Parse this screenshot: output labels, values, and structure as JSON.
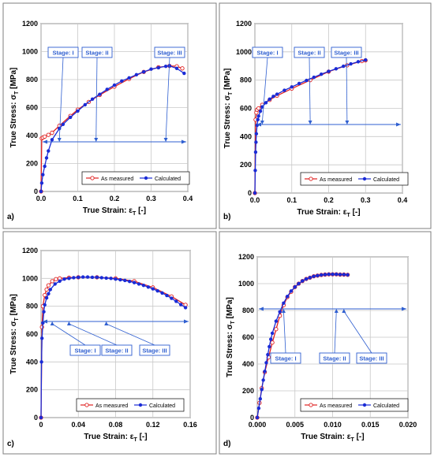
{
  "figure": {
    "colors": {
      "measured": "#e02020",
      "calculated": "#1a2bd6",
      "annotation": "#2f5fd0",
      "grid": "#c8c8c8",
      "axis": "#000000",
      "panel_border": "#7f7f7f"
    }
  },
  "chart_data": [
    {
      "type": "line",
      "panel_label": "a)",
      "xlabel_main": "True Strain: ε",
      "xlabel_sub": "T",
      "xlabel_unit": " [-]",
      "ylabel_main": "True Stress: σ",
      "ylabel_sub": "T",
      "ylabel_unit": " [MPa]",
      "xlim": [
        0,
        0.4
      ],
      "ylim": [
        0,
        1200
      ],
      "xticks": [
        0,
        0.1,
        0.2,
        0.3,
        0.4
      ],
      "xtick_labels": [
        "0.0",
        "0.1",
        "0.2",
        "0.3",
        "0.4"
      ],
      "yticks": [
        0,
        200,
        400,
        600,
        800,
        1000,
        1200
      ],
      "ytick_labels": [
        "0",
        "200",
        "400",
        "600",
        "800",
        "1000",
        "1200"
      ],
      "grid": true,
      "legend": {
        "position": "bottom-center",
        "items": [
          "As measured",
          "Calculated"
        ]
      },
      "series": [
        {
          "name": "As measured",
          "color_key": "measured",
          "x": [
            0,
            0.002,
            0.005,
            0.01,
            0.02,
            0.03,
            0.05,
            0.08,
            0.1,
            0.13,
            0.16,
            0.2,
            0.24,
            0.28,
            0.32,
            0.35,
            0.37,
            0.385
          ],
          "y": [
            0,
            380,
            385,
            392,
            405,
            420,
            470,
            540,
            585,
            640,
            690,
            750,
            805,
            855,
            888,
            898,
            895,
            880
          ]
        },
        {
          "name": "Calculated",
          "color_key": "calculated",
          "x": [
            0,
            0.002,
            0.005,
            0.01,
            0.015,
            0.02,
            0.03,
            0.05,
            0.06,
            0.08,
            0.1,
            0.12,
            0.14,
            0.16,
            0.18,
            0.2,
            0.22,
            0.24,
            0.26,
            0.28,
            0.3,
            0.32,
            0.34,
            0.35,
            0.37,
            0.39
          ],
          "y": [
            0,
            60,
            120,
            180,
            240,
            290,
            370,
            450,
            480,
            530,
            575,
            620,
            660,
            695,
            730,
            760,
            790,
            812,
            835,
            855,
            875,
            885,
            895,
            898,
            880,
            845
          ]
        }
      ],
      "stages": [
        {
          "label": "Stage: I",
          "x": 0.05
        },
        {
          "label": "Stage: II",
          "x": 0.15
        },
        {
          "label": "Stage: III",
          "x": 0.34
        }
      ]
    },
    {
      "type": "line",
      "panel_label": "b)",
      "xlabel_main": "True Strain: ε",
      "xlabel_sub": "T",
      "xlabel_unit": " [-]",
      "ylabel_main": "True Stress: σ",
      "ylabel_sub": "T",
      "ylabel_unit": " [MPa]",
      "xlim": [
        0,
        0.4
      ],
      "ylim": [
        0,
        1200
      ],
      "xticks": [
        0,
        0.1,
        0.2,
        0.3,
        0.4
      ],
      "xtick_labels": [
        "0.0",
        "0.1",
        "0.2",
        "0.3",
        "0.4"
      ],
      "yticks": [
        0,
        200,
        400,
        600,
        800,
        1000,
        1200
      ],
      "ytick_labels": [
        "0",
        "200",
        "400",
        "600",
        "800",
        "1000",
        "1200"
      ],
      "grid": true,
      "legend": {
        "position": "bottom-center",
        "items": [
          "As measured",
          "Calculated"
        ]
      },
      "series": [
        {
          "name": "As measured",
          "color_key": "measured",
          "x": [
            0,
            0.002,
            0.004,
            0.006,
            0.01,
            0.02,
            0.04,
            0.06,
            0.1,
            0.15,
            0.2,
            0.25,
            0.29,
            0.3
          ],
          "y": [
            0,
            520,
            570,
            590,
            600,
            625,
            660,
            690,
            740,
            800,
            860,
            905,
            935,
            940
          ]
        },
        {
          "name": "Calculated",
          "color_key": "calculated",
          "x": [
            0,
            0.001,
            0.002,
            0.003,
            0.004,
            0.006,
            0.008,
            0.01,
            0.015,
            0.02,
            0.03,
            0.04,
            0.05,
            0.06,
            0.08,
            0.1,
            0.12,
            0.14,
            0.16,
            0.18,
            0.2,
            0.22,
            0.24,
            0.26,
            0.28,
            0.3
          ],
          "y": [
            0,
            160,
            290,
            360,
            420,
            480,
            520,
            545,
            580,
            610,
            640,
            665,
            685,
            700,
            728,
            752,
            776,
            798,
            820,
            842,
            862,
            880,
            898,
            915,
            930,
            943
          ]
        }
      ],
      "stages": [
        {
          "label": "Stage: I",
          "x": 0.02
        },
        {
          "label": "Stage: II",
          "x": 0.15
        },
        {
          "label": "Stage: III",
          "x": 0.25
        }
      ]
    },
    {
      "type": "line",
      "panel_label": "c)",
      "xlabel_main": "True Strain: ε",
      "xlabel_sub": "T",
      "xlabel_unit": " [-]",
      "ylabel_main": "True Stress: σ",
      "ylabel_sub": "T",
      "ylabel_unit": " [MPa]",
      "xlim": [
        0,
        0.16
      ],
      "ylim": [
        0,
        1200
      ],
      "xticks": [
        0,
        0.04,
        0.08,
        0.12,
        0.16
      ],
      "xtick_labels": [
        "0",
        "0.04",
        "0.08",
        "0.12",
        "0.16"
      ],
      "yticks": [
        0,
        200,
        400,
        600,
        800,
        1000,
        1200
      ],
      "ytick_labels": [
        "0",
        "200",
        "400",
        "600",
        "800",
        "1000",
        "1200"
      ],
      "grid": true,
      "legend": {
        "position": "bottom-center",
        "items": [
          "As measured",
          "Calculated"
        ]
      },
      "series": [
        {
          "name": "As measured",
          "color_key": "measured",
          "x": [
            0,
            0.001,
            0.002,
            0.004,
            0.006,
            0.008,
            0.012,
            0.016,
            0.02,
            0.03,
            0.04,
            0.06,
            0.08,
            0.1,
            0.12,
            0.14,
            0.155
          ],
          "y": [
            0,
            650,
            800,
            880,
            920,
            950,
            980,
            995,
            1000,
            1005,
            1008,
            1008,
            1000,
            980,
            935,
            870,
            810
          ]
        },
        {
          "name": "Calculated",
          "color_key": "calculated",
          "x": [
            0,
            0.0005,
            0.001,
            0.002,
            0.003,
            0.004,
            0.006,
            0.008,
            0.01,
            0.015,
            0.02,
            0.025,
            0.03,
            0.035,
            0.04,
            0.045,
            0.05,
            0.055,
            0.06,
            0.065,
            0.07,
            0.075,
            0.08,
            0.085,
            0.09,
            0.095,
            0.1,
            0.105,
            0.11,
            0.115,
            0.12,
            0.125,
            0.13,
            0.135,
            0.14,
            0.145,
            0.15,
            0.155
          ],
          "y": [
            0,
            400,
            570,
            680,
            760,
            810,
            860,
            890,
            920,
            960,
            980,
            995,
            1000,
            1005,
            1008,
            1010,
            1010,
            1008,
            1008,
            1005,
            1002,
            1000,
            995,
            990,
            985,
            978,
            970,
            960,
            950,
            938,
            925,
            910,
            895,
            877,
            857,
            835,
            812,
            790
          ]
        }
      ],
      "stages": [
        {
          "label": "Stage: I",
          "x": 0.012
        },
        {
          "label": "Stage: II",
          "x": 0.03
        },
        {
          "label": "Stage: III",
          "x": 0.07
        }
      ]
    },
    {
      "type": "line",
      "panel_label": "d)",
      "xlabel_main": "True Strain: ε",
      "xlabel_sub": "T",
      "xlabel_unit": " [-]",
      "ylabel_main": "True Stress: σ",
      "ylabel_sub": "T",
      "ylabel_unit": " [MPa]",
      "xlim": [
        0,
        0.02
      ],
      "ylim": [
        0,
        1200
      ],
      "xticks": [
        0,
        0.005,
        0.01,
        0.015,
        0.02
      ],
      "xtick_labels": [
        "0.000",
        "0.005",
        "0.010",
        "0.015",
        "0.020"
      ],
      "yticks": [
        0,
        200,
        400,
        600,
        800,
        1000,
        1200
      ],
      "ytick_labels": [
        "0",
        "200",
        "400",
        "600",
        "800",
        "1000",
        "1200"
      ],
      "grid": true,
      "legend": {
        "position": "bottom-center",
        "items": [
          "As measured",
          "Calculated"
        ]
      },
      "series": [
        {
          "name": "As measured",
          "color_key": "measured",
          "x": [
            0,
            0.0003,
            0.0006,
            0.001,
            0.0015,
            0.002,
            0.0025,
            0.003,
            0.0035,
            0.004,
            0.0045,
            0.005,
            0.0055,
            0.006,
            0.0065,
            0.007,
            0.0075,
            0.008,
            0.0085,
            0.009,
            0.0095,
            0.01,
            0.0105,
            0.011,
            0.0115,
            0.012
          ],
          "y": [
            0,
            110,
            220,
            340,
            450,
            560,
            660,
            760,
            840,
            900,
            940,
            975,
            1000,
            1020,
            1035,
            1045,
            1055,
            1060,
            1065,
            1068,
            1070,
            1070,
            1070,
            1068,
            1068,
            1066
          ]
        },
        {
          "name": "Calculated",
          "color_key": "calculated",
          "x": [
            0,
            0.0002,
            0.0004,
            0.0006,
            0.0008,
            0.001,
            0.0012,
            0.0014,
            0.0016,
            0.0018,
            0.002,
            0.0025,
            0.003,
            0.0035,
            0.004,
            0.0045,
            0.005,
            0.0055,
            0.006,
            0.0065,
            0.007,
            0.0075,
            0.008,
            0.0085,
            0.009,
            0.0095,
            0.01,
            0.0105,
            0.011,
            0.0115,
            0.012
          ],
          "y": [
            0,
            70,
            140,
            210,
            280,
            345,
            410,
            470,
            530,
            585,
            630,
            720,
            790,
            855,
            905,
            945,
            975,
            1000,
            1020,
            1035,
            1045,
            1055,
            1060,
            1065,
            1068,
            1070,
            1070,
            1070,
            1068,
            1068,
            1066
          ]
        }
      ],
      "stages": [
        {
          "label": "Stage: I",
          "x": 0.0035
        },
        {
          "label": "Stage: II",
          "x": 0.0105
        },
        {
          "label": "Stage: III",
          "x": 0.0115
        }
      ]
    }
  ]
}
